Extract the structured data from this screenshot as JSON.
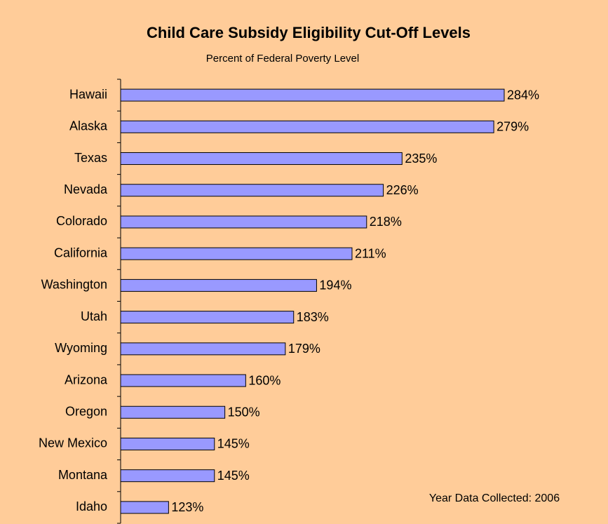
{
  "chart_data": {
    "type": "hbar",
    "title": "Child Care Subsidy Eligibility Cut-Off Levels",
    "subtitle": "Percent of Federal Poverty Level",
    "annotation": "Year Data Collected: 2006",
    "categories": [
      "Hawaii",
      "Alaska",
      "Texas",
      "Nevada",
      "Colorado",
      "California",
      "Washington",
      "Utah",
      "Wyoming",
      "Arizona",
      "Oregon",
      "New Mexico",
      "Montana",
      "Idaho"
    ],
    "values": [
      284,
      279,
      235,
      226,
      218,
      211,
      194,
      183,
      179,
      160,
      150,
      145,
      145,
      123
    ],
    "value_labels": [
      "284%",
      "279%",
      "235%",
      "226%",
      "218%",
      "211%",
      "194%",
      "183%",
      "179%",
      "160%",
      "150%",
      "145%",
      "145%",
      "123%"
    ],
    "color": "#9999ff",
    "xlim": [
      100,
      320
    ]
  }
}
